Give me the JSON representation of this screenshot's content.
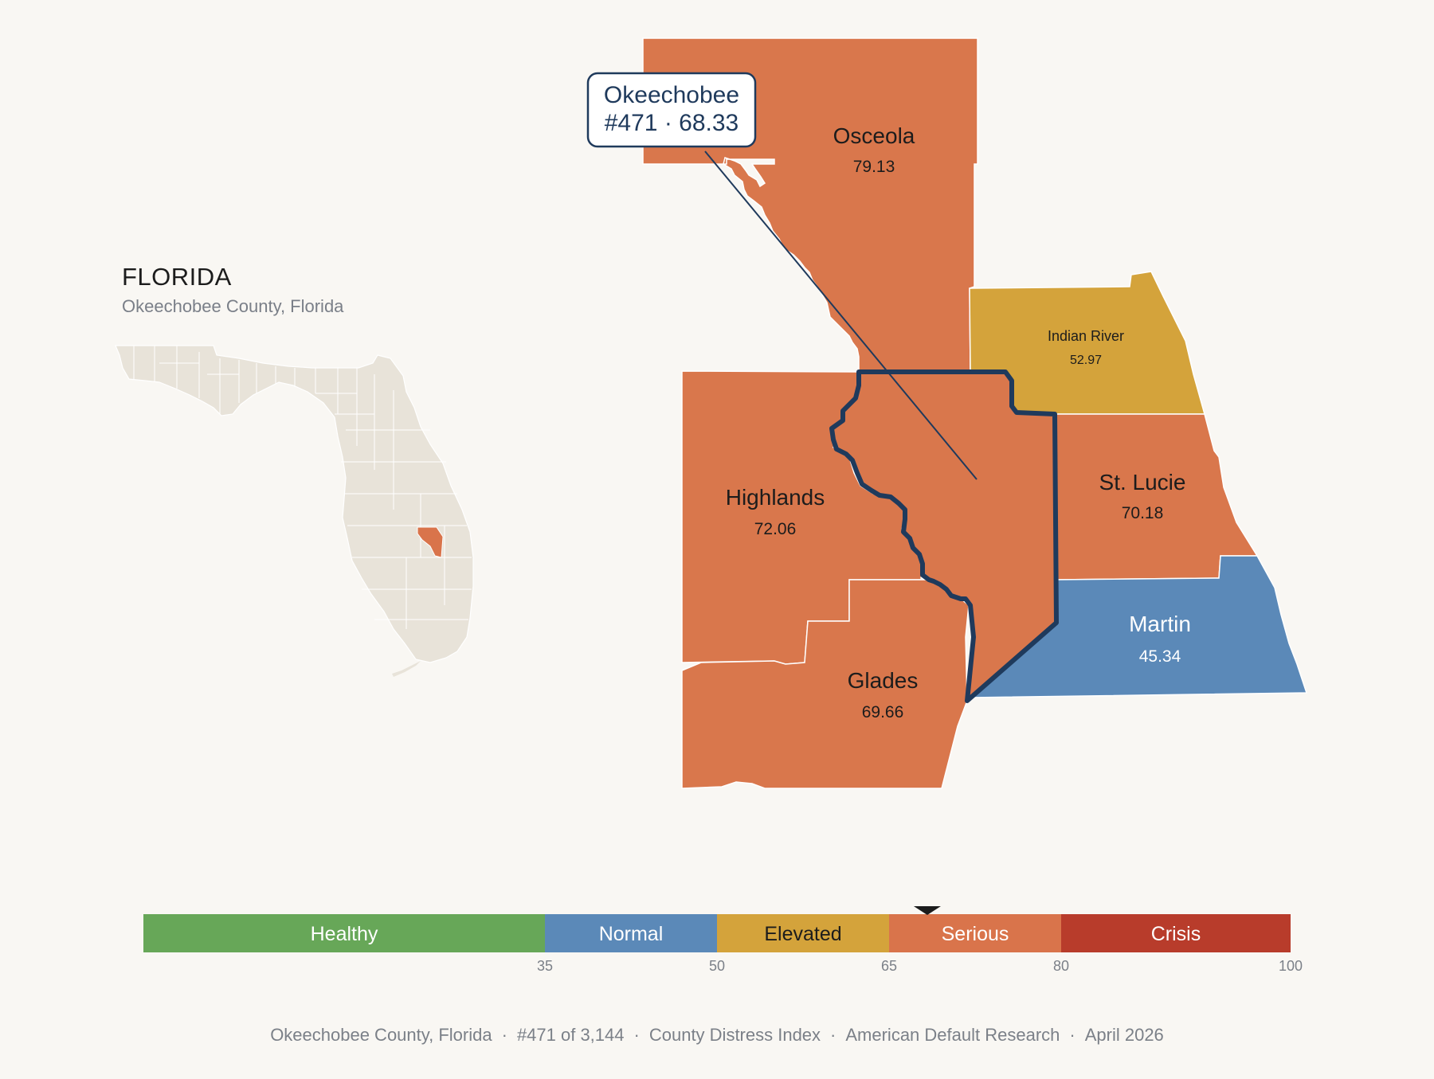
{
  "inset": {
    "state_title": "FLORIDA",
    "subtitle": "Okeechobee County, Florida"
  },
  "callout": {
    "line1": "Okeechobee",
    "line2": "#471 · 68.33"
  },
  "counties": [
    {
      "id": "osceola",
      "name": "Osceola",
      "value": "79.13",
      "category": "Serious"
    },
    {
      "id": "indian-river",
      "name": "Indian River",
      "value": "52.97",
      "category": "Elevated"
    },
    {
      "id": "highlands",
      "name": "Highlands",
      "value": "72.06",
      "category": "Serious"
    },
    {
      "id": "st-lucie",
      "name": "St. Lucie",
      "value": "70.18",
      "category": "Serious"
    },
    {
      "id": "martin",
      "name": "Martin",
      "value": "45.34",
      "category": "Normal"
    },
    {
      "id": "glades",
      "name": "Glades",
      "value": "69.66",
      "category": "Serious"
    },
    {
      "id": "okeechobee",
      "name": "Okeechobee",
      "value": "68.33",
      "category": "Serious",
      "highlighted": true
    }
  ],
  "legend": {
    "bands": [
      {
        "label": "Healthy",
        "min": 0,
        "max": 35,
        "color": "#67a758"
      },
      {
        "label": "Normal",
        "min": 35,
        "max": 50,
        "color": "#5b89b8"
      },
      {
        "label": "Elevated",
        "min": 50,
        "max": 65,
        "color": "#d4a33b"
      },
      {
        "label": "Serious",
        "min": 65,
        "max": 80,
        "color": "#d9744b"
      },
      {
        "label": "Crisis",
        "min": 80,
        "max": 100,
        "color": "#b83c2b"
      }
    ],
    "ticks": [
      "35",
      "50",
      "65",
      "80",
      "100"
    ],
    "marker_value": 68.33
  },
  "footer": {
    "county": "Okeechobee County, Florida",
    "rank": "#471 of 3,144",
    "index": "County Distress Index",
    "source": "American Default Research",
    "date": "April 2026",
    "separator": "·"
  },
  "colors": {
    "background": "#f9f7f3",
    "highlight_outline": "#1f3a5c",
    "inset_state_fill": "#e8e3d9"
  }
}
